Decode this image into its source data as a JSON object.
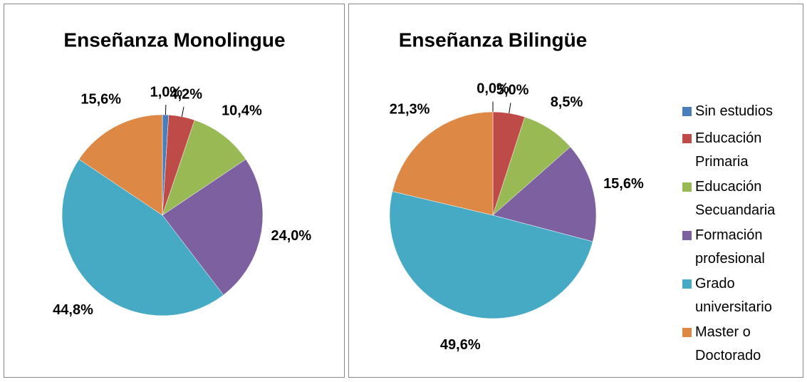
{
  "chart_data": [
    {
      "type": "pie",
      "title": "Enseñanza Monolingue",
      "categories": [
        "Sin estudios",
        "Educación Primaria",
        "Educación Secuandaria",
        "Formación profesional",
        "Grado universitario",
        "Master o Doctorado"
      ],
      "values": [
        1.0,
        4.2,
        10.4,
        24.0,
        44.8,
        15.6
      ],
      "value_labels": [
        "1,0%",
        "4,2%",
        "10,4%",
        "24,0%",
        "44,8%",
        "15,6%"
      ],
      "colors": [
        "#4a7ebb",
        "#be4b48",
        "#98b954",
        "#7d60a0",
        "#46aac5",
        "#dd8844"
      ]
    },
    {
      "type": "pie",
      "title": "Enseñanza Bilingüe",
      "categories": [
        "Sin estudios",
        "Educación Primaria",
        "Educación Secuandaria",
        "Formación profesional",
        "Grado universitario",
        "Master o Doctorado"
      ],
      "values": [
        0.0,
        5.0,
        8.5,
        15.6,
        49.6,
        21.3
      ],
      "value_labels": [
        "0,0%",
        "5,0%",
        "8,5%",
        "15,6%",
        "49,6%",
        "21,3%"
      ],
      "colors": [
        "#4a7ebb",
        "#be4b48",
        "#98b954",
        "#7d60a0",
        "#46aac5",
        "#dd8844"
      ],
      "legend": "right"
    }
  ]
}
